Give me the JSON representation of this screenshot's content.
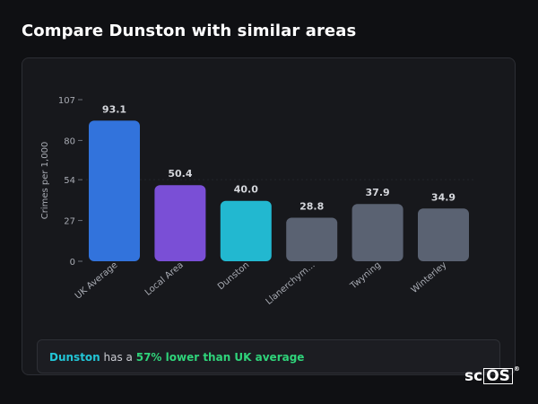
{
  "page": {
    "title": "Compare Dunston with similar areas"
  },
  "chart_data": {
    "type": "bar",
    "title": "",
    "xlabel": "",
    "ylabel": "Crimes per 1,000",
    "ylim": [
      0,
      107
    ],
    "yticks": [
      0,
      27,
      54,
      80,
      107
    ],
    "categories": [
      "UK Average",
      "Local Area",
      "Dunston",
      "Llanerchym...",
      "Twyning",
      "Winterley"
    ],
    "values": [
      93.1,
      50.4,
      40.0,
      28.8,
      37.9,
      34.9
    ],
    "value_labels": [
      "93.1",
      "50.4",
      "40.0",
      "28.8",
      "37.9",
      "34.9"
    ],
    "colors": [
      "#3273dc",
      "#7a4fd6",
      "#22b8d0",
      "#5a6272",
      "#5a6272",
      "#5a6272"
    ],
    "grid": false
  },
  "summary": {
    "area": "Dunston",
    "middle": " has a ",
    "highlight": "57% lower than UK average"
  },
  "logo": {
    "text_a": "sc",
    "text_b": "OS",
    "mark": "®"
  }
}
